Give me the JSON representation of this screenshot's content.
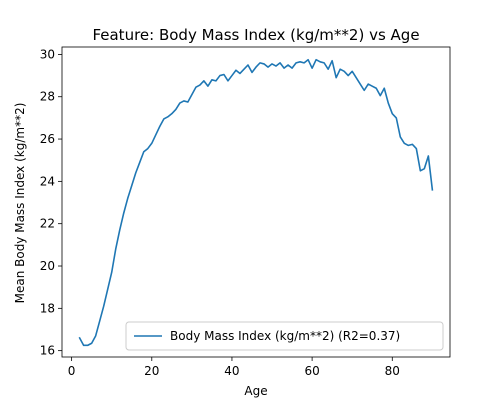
{
  "chart_data": {
    "type": "line",
    "title": "Feature: Body Mass Index (kg/m**2) vs Age",
    "xlabel": "Age",
    "ylabel": "Mean Body Mass Index (kg/m**2)",
    "xlim": [
      -2.4,
      94.4
    ],
    "ylim": [
      15.7,
      30.35
    ],
    "xticks": [
      0,
      20,
      40,
      60,
      80
    ],
    "yticks": [
      16,
      18,
      20,
      22,
      24,
      26,
      28,
      30
    ],
    "xtick_labels": [
      "0",
      "20",
      "40",
      "60",
      "80"
    ],
    "ytick_labels": [
      "16",
      "18",
      "20",
      "22",
      "24",
      "26",
      "28",
      "30"
    ],
    "grid": false,
    "legend_position": "lower-right",
    "series": [
      {
        "name": "Body Mass Index (kg/m**2) (R2=0.37)",
        "color": "#1f77b4",
        "x": [
          2,
          3,
          4,
          5,
          6,
          7,
          8,
          9,
          10,
          11,
          12,
          13,
          14,
          15,
          16,
          17,
          18,
          19,
          20,
          21,
          22,
          23,
          24,
          25,
          26,
          27,
          28,
          29,
          30,
          31,
          32,
          33,
          34,
          35,
          36,
          37,
          38,
          39,
          40,
          41,
          42,
          43,
          44,
          45,
          46,
          47,
          48,
          49,
          50,
          51,
          52,
          53,
          54,
          55,
          56,
          57,
          58,
          59,
          60,
          61,
          62,
          63,
          64,
          65,
          66,
          67,
          68,
          69,
          70,
          71,
          72,
          73,
          74,
          75,
          76,
          77,
          78,
          79,
          80,
          81,
          82,
          83,
          84,
          85,
          86,
          87,
          88,
          89,
          90
        ],
        "y": [
          16.6,
          16.25,
          16.25,
          16.35,
          16.7,
          17.4,
          18.1,
          18.9,
          19.7,
          20.8,
          21.7,
          22.5,
          23.2,
          23.8,
          24.4,
          24.9,
          25.4,
          25.55,
          25.8,
          26.2,
          26.6,
          26.95,
          27.05,
          27.2,
          27.4,
          27.7,
          27.8,
          27.75,
          28.1,
          28.45,
          28.55,
          28.75,
          28.5,
          28.8,
          28.75,
          29.0,
          29.05,
          28.75,
          29.0,
          29.25,
          29.1,
          29.3,
          29.5,
          29.15,
          29.4,
          29.6,
          29.55,
          29.4,
          29.55,
          29.45,
          29.6,
          29.35,
          29.5,
          29.35,
          29.6,
          29.65,
          29.6,
          29.75,
          29.35,
          29.75,
          29.65,
          29.6,
          29.3,
          29.7,
          28.9,
          29.3,
          29.2,
          29.0,
          29.2,
          28.9,
          28.6,
          28.3,
          28.6,
          28.5,
          28.4,
          28.05,
          28.4,
          27.7,
          27.2,
          27.0,
          26.1,
          25.8,
          25.7,
          25.75,
          25.55,
          24.5,
          24.6,
          25.2,
          23.6
        ]
      }
    ]
  }
}
